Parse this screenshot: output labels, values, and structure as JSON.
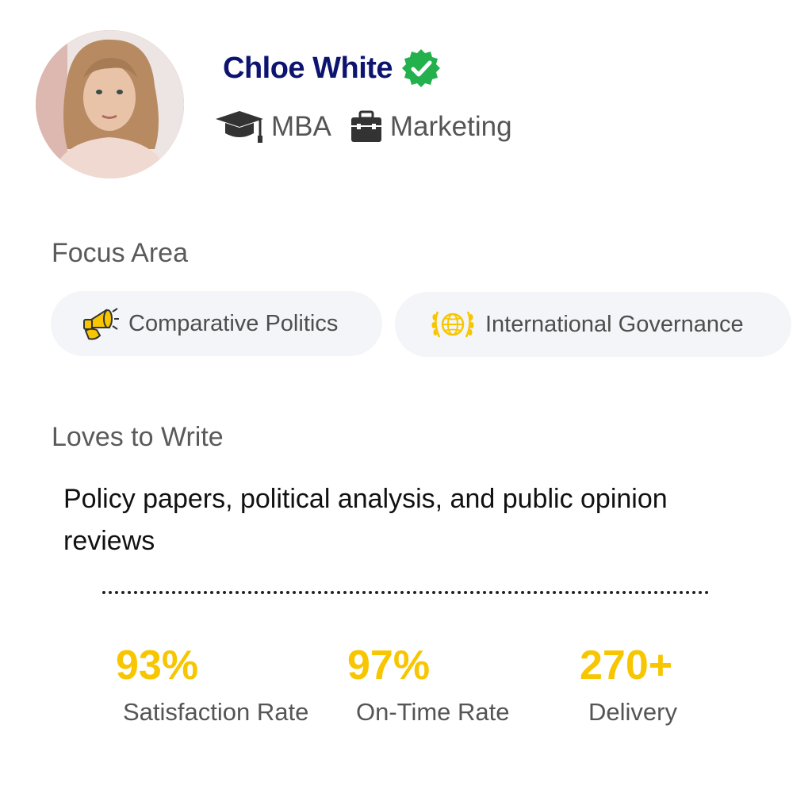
{
  "profile": {
    "name": "Chloe White",
    "verified_icon": "verified-badge-icon",
    "degree": "MBA",
    "department": "Marketing"
  },
  "focus_area": {
    "label": "Focus Area",
    "chips": [
      {
        "label": "Comparative Politics",
        "icon": "megaphone-icon"
      },
      {
        "label": "International Governance",
        "icon": "globe-laurel-icon"
      }
    ]
  },
  "loves_to_write": {
    "label": "Loves to Write",
    "text": "Policy papers, political analysis, and public opinion reviews"
  },
  "stats": [
    {
      "value": "93%",
      "label": "Satisfaction Rate"
    },
    {
      "value": "97%",
      "label": "On-Time Rate"
    },
    {
      "value": "270+",
      "label": "Delivery"
    }
  ],
  "colors": {
    "name": "#0d1470",
    "accent": "#f7c600",
    "verified": "#22b14c",
    "chip_bg": "#f3f5f8"
  }
}
